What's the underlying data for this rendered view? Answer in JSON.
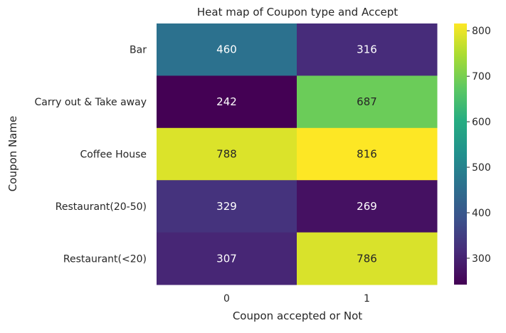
{
  "chart_data": {
    "type": "heatmap",
    "title": "Heat map of Coupon type and Accept",
    "xlabel": "Coupon accepted or Not",
    "ylabel": "Coupon Name",
    "x_categories": [
      "0",
      "1"
    ],
    "y_categories": [
      "Bar",
      "Carry out & Take away",
      "Coffee House",
      "Restaurant(20-50)",
      "Restaurant(<20)"
    ],
    "values": [
      [
        460,
        316
      ],
      [
        242,
        687
      ],
      [
        788,
        816
      ],
      [
        329,
        269
      ],
      [
        307,
        786
      ]
    ],
    "colormap": "viridis",
    "color_range": [
      242,
      816
    ],
    "colorbar_ticks": [
      300,
      400,
      500,
      600,
      700,
      800
    ],
    "annotation_text_color_dark": "#262626",
    "annotation_text_color_light": "#ffffff"
  }
}
